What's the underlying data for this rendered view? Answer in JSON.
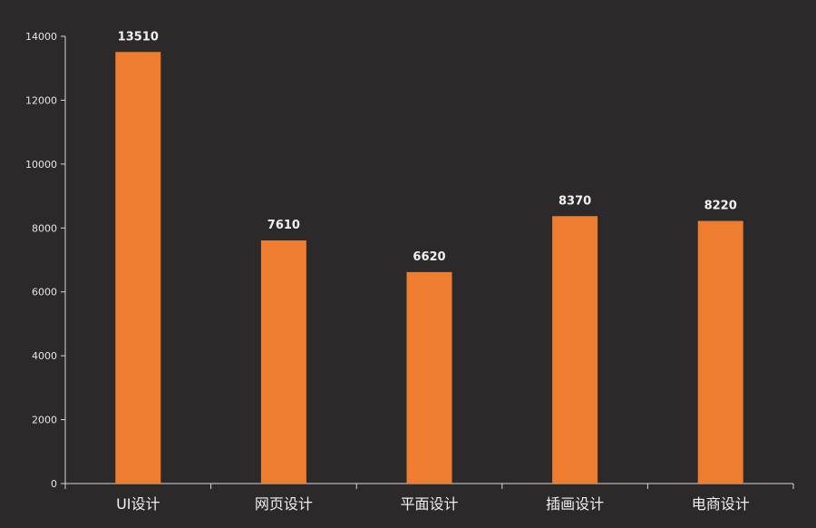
{
  "chart_data": {
    "type": "bar",
    "categories": [
      "UI设计",
      "网页设计",
      "平面设计",
      "插画设计",
      "电商设计"
    ],
    "values": [
      13510,
      7610,
      6620,
      8370,
      8220
    ],
    "data_labels": [
      "13510",
      "7610",
      "6620",
      "8370",
      "8220"
    ],
    "y_ticks": [
      "0",
      "2000",
      "4000",
      "6000",
      "8000",
      "10000",
      "12000",
      "14000"
    ],
    "ylim": [
      0,
      14000
    ],
    "grid": false,
    "colors": {
      "background": "#2b292a",
      "bar": "#ee7d30",
      "axis": "#d9d9d9",
      "tick_text": "#e6e6e6",
      "value_label": "#f2f2f2",
      "category_text": "#f0f0f0"
    }
  }
}
